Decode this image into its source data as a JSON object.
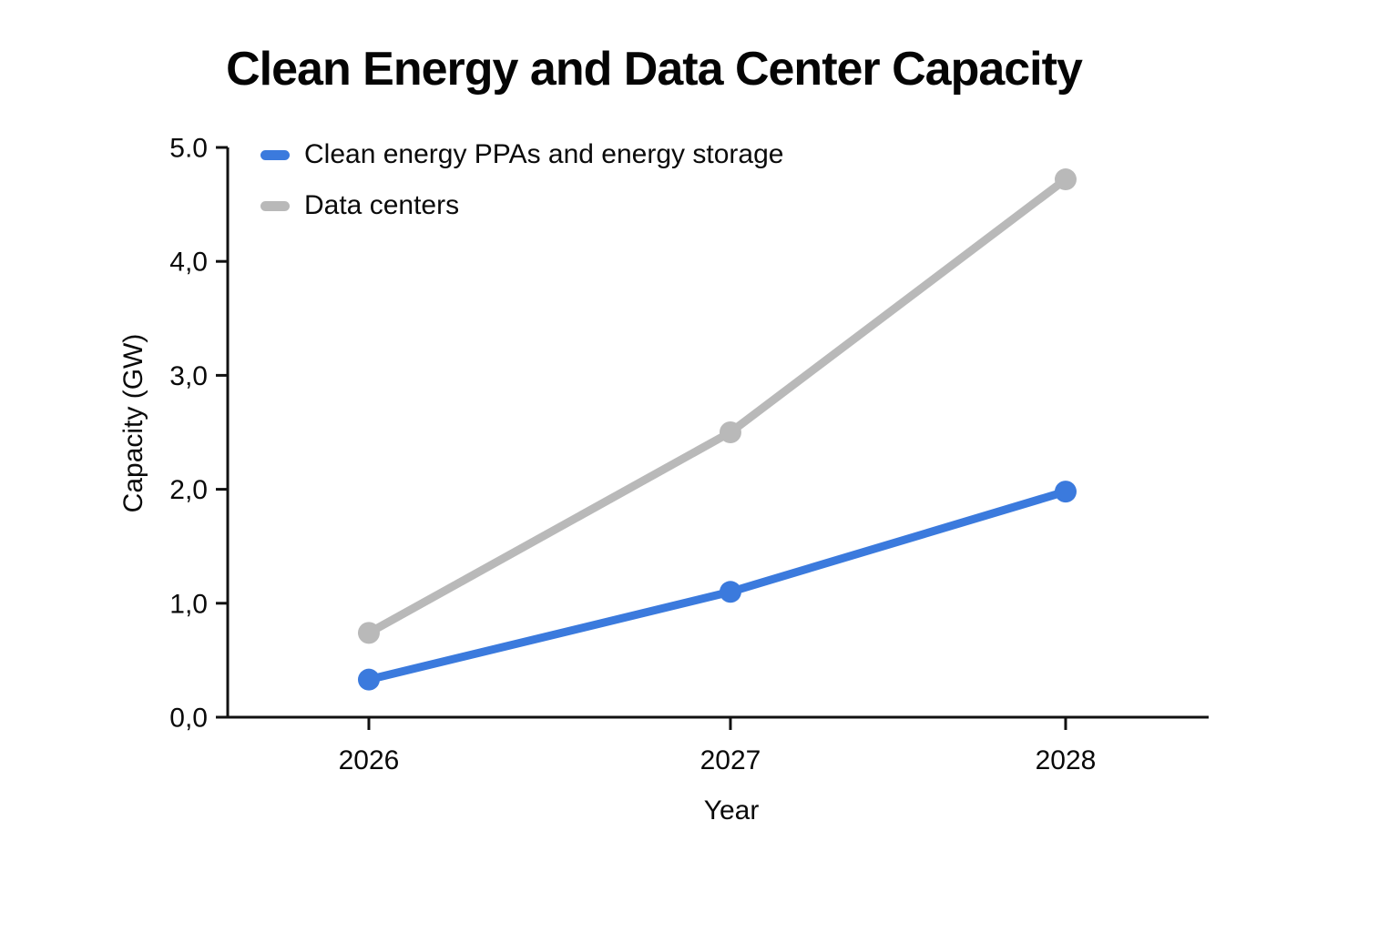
{
  "title": "Clean Energy and Data Center Capacity",
  "chart_data": {
    "type": "line",
    "categories": [
      "2026",
      "2027",
      "2028"
    ],
    "series": [
      {
        "name": "Clean energy PPAs and energy storage",
        "color": "#3b7add",
        "values": [
          0.33,
          1.1,
          1.98
        ]
      },
      {
        "name": "Data centers",
        "color": "#b9b9b9",
        "values": [
          0.74,
          2.5,
          4.72
        ]
      }
    ],
    "xlabel": "Year",
    "ylabel": "Capacity (GW)",
    "ylim": [
      0,
      5
    ],
    "ytick_labels": [
      "0,0",
      "1,0",
      "2,0",
      "3,0",
      "4,0",
      "5.0"
    ],
    "grid": false,
    "legend_position": "top-left",
    "axis_color": "#111111",
    "marker_style": "circle"
  }
}
